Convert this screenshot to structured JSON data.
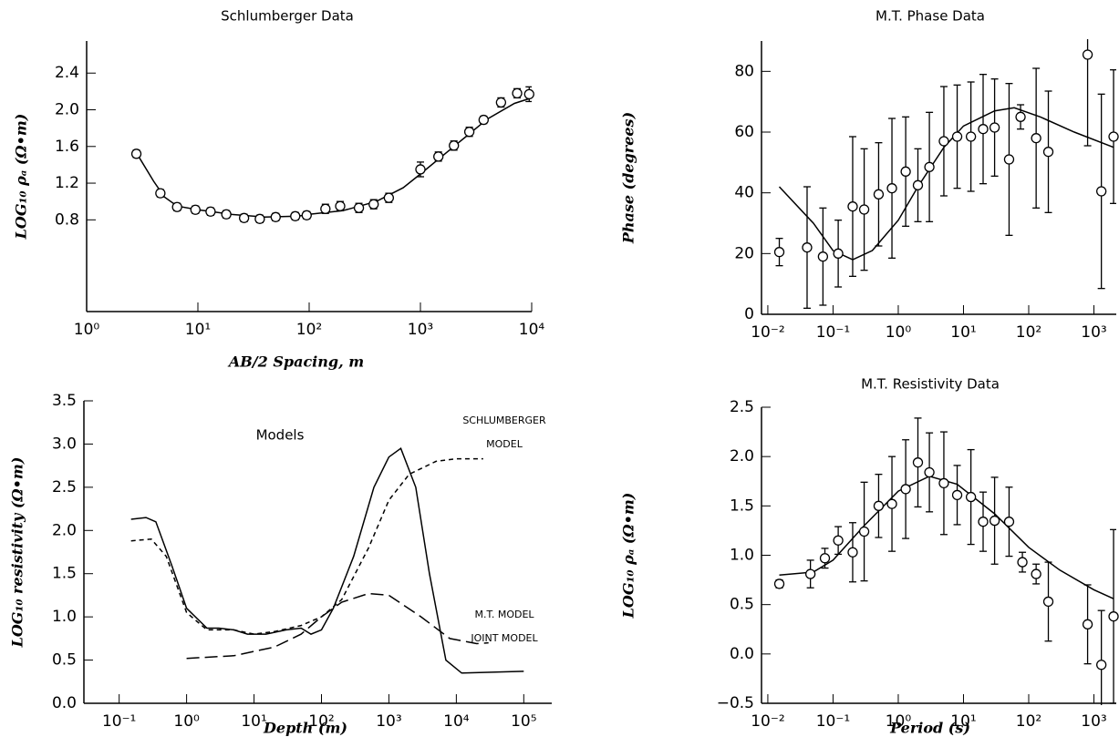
{
  "chart_data": [
    {
      "type": "errorbar",
      "title": "Schlumberger Data",
      "x_label": "AB/2 Spacing, m",
      "y_label": "LOG₁₀ ρₐ (Ω•m)",
      "xlog": true,
      "color": "#000000",
      "xlim": [
        1,
        10000
      ],
      "ylim": [
        -0.2,
        2.75
      ],
      "xticks": [
        {
          "value": 1,
          "label": "10⁰"
        },
        {
          "value": 10,
          "label": "10¹"
        },
        {
          "value": 100,
          "label": "10²"
        },
        {
          "value": 1000,
          "label": "10³"
        },
        {
          "value": 10000,
          "label": "10⁴"
        }
      ],
      "yticks": [
        0.8,
        1.2,
        1.6,
        {
          "value": 2,
          "label": "2.0"
        },
        2.4
      ],
      "points": {
        "x": [
          2.8,
          4.6,
          6.5,
          9.5,
          13,
          18,
          26,
          36,
          50,
          75,
          95,
          140,
          190,
          280,
          380,
          520,
          1000,
          1450,
          2000,
          2750,
          3700,
          5300,
          7400,
          9500
        ],
        "values": [
          1.52,
          1.09,
          0.94,
          0.91,
          0.89,
          0.86,
          0.82,
          0.81,
          0.83,
          0.84,
          0.85,
          0.92,
          0.95,
          0.93,
          0.97,
          1.04,
          1.35,
          1.49,
          1.61,
          1.76,
          1.89,
          2.08,
          2.18,
          2.17
        ],
        "errors": [
          0.04,
          0.04,
          0.04,
          0.04,
          0.04,
          0.04,
          0.04,
          0.04,
          0.04,
          0.04,
          0.04,
          0.05,
          0.05,
          0.05,
          0.05,
          0.05,
          0.08,
          0.05,
          0.05,
          0.05,
          0.04,
          0.05,
          0.05,
          0.08
        ]
      },
      "curve": {
        "x": [
          2.8,
          4,
          5,
          6.5,
          10,
          20,
          40,
          80,
          100,
          200,
          400,
          700,
          1000,
          2000,
          4000,
          7000,
          10000
        ],
        "values": [
          1.53,
          1.22,
          1.05,
          0.95,
          0.91,
          0.86,
          0.83,
          0.84,
          0.86,
          0.9,
          1.0,
          1.15,
          1.3,
          1.6,
          1.9,
          2.07,
          2.13
        ]
      }
    },
    {
      "type": "errorbar",
      "title": "M.T. Phase Data",
      "y_label": "Phase (degrees)",
      "xlog": true,
      "color": "#000000",
      "xlim": [
        0.008,
        2200
      ],
      "ylim": [
        0,
        90
      ],
      "xticks": [
        {
          "value": 0.01,
          "label": "10⁻²"
        },
        {
          "value": 0.1,
          "label": "10⁻¹"
        },
        {
          "value": 1,
          "label": "10⁰"
        },
        {
          "value": 10,
          "label": "10¹"
        },
        {
          "value": 100,
          "label": "10²"
        },
        {
          "value": 1000,
          "label": "10³"
        }
      ],
      "yticks": [
        0,
        20,
        40,
        60,
        80
      ],
      "points": {
        "x": [
          0.015,
          0.04,
          0.07,
          0.12,
          0.2,
          0.3,
          0.5,
          0.8,
          1.3,
          2,
          3,
          5,
          8,
          13,
          20,
          30,
          50,
          75,
          130,
          200,
          800,
          1300,
          2000
        ],
        "values": [
          20.5,
          22,
          19,
          20,
          35.5,
          34.5,
          39.5,
          41.5,
          47,
          42.5,
          48.5,
          57,
          58.5,
          58.5,
          61,
          61.5,
          51,
          65,
          58,
          53.5,
          85.5,
          40.5,
          58.5
        ],
        "errors": [
          4.5,
          20,
          16,
          11,
          23,
          20,
          17,
          23,
          18,
          12,
          18,
          18,
          17,
          18,
          18,
          16,
          25,
          4,
          23,
          20,
          30,
          32,
          22
        ]
      },
      "curve": {
        "x": [
          0.015,
          0.05,
          0.1,
          0.2,
          0.4,
          1,
          2,
          5,
          10,
          30,
          60,
          150,
          500,
          2000
        ],
        "values": [
          42,
          30,
          21,
          18,
          21,
          31,
          42,
          55,
          62,
          67,
          68,
          65,
          60,
          55
        ]
      }
    },
    {
      "type": "line",
      "title": "Models",
      "x_label": "Depth (m)",
      "y_label": "LOG₁₀ resistivity (Ω•m)",
      "xlog": true,
      "xlim": [
        0.03,
        260000
      ],
      "ylim": [
        0,
        3.5
      ],
      "xticks": [
        {
          "value": 0.1,
          "label": "10⁻¹"
        },
        {
          "value": 1,
          "label": "10⁰"
        },
        {
          "value": 10,
          "label": "10¹"
        },
        {
          "value": 100,
          "label": "10²"
        },
        {
          "value": 1000,
          "label": "10³"
        },
        {
          "value": 10000,
          "label": "10⁴"
        },
        {
          "value": 100000,
          "label": "10⁵"
        }
      ],
      "yticks": [
        {
          "value": 0,
          "label": "0.0"
        },
        0.5,
        {
          "value": 1,
          "label": "1.0"
        },
        1.5,
        {
          "value": 2,
          "label": "2.0"
        },
        2.5,
        {
          "value": 3,
          "label": "3.0"
        },
        3.5
      ],
      "series": [
        {
          "name": "SCHLUMBERGER MODEL",
          "color": "#000000",
          "style": "dashed",
          "x": [
            0.15,
            0.3,
            0.5,
            1,
            2,
            5,
            10,
            20,
            50,
            100,
            200,
            500,
            1000,
            2000,
            5000,
            10000,
            25000
          ],
          "values": [
            1.88,
            1.9,
            1.7,
            1.05,
            0.85,
            0.85,
            0.8,
            0.83,
            0.9,
            1.0,
            1.2,
            1.8,
            2.35,
            2.65,
            2.8,
            2.83,
            2.83
          ]
        },
        {
          "name": "M.T. MODEL",
          "color": "#000000",
          "style": "long-dashed",
          "x": [
            1,
            5,
            20,
            50,
            100,
            200,
            500,
            1000,
            3000,
            8000,
            20000,
            30000
          ],
          "values": [
            0.52,
            0.55,
            0.65,
            0.8,
            1.0,
            1.17,
            1.27,
            1.25,
            1.0,
            0.75,
            0.69,
            0.7
          ]
        },
        {
          "name": "JOINT MODEL",
          "color": "#000000",
          "style": "solid",
          "x": [
            0.15,
            0.25,
            0.35,
            0.6,
            1,
            2,
            3,
            5,
            8,
            15,
            30,
            50,
            70,
            100,
            150,
            300,
            600,
            1000,
            1500,
            2500,
            4000,
            7000,
            12000,
            100000
          ],
          "values": [
            2.13,
            2.15,
            2.1,
            1.6,
            1.1,
            0.87,
            0.87,
            0.85,
            0.8,
            0.8,
            0.85,
            0.87,
            0.8,
            0.85,
            1.1,
            1.7,
            2.5,
            2.85,
            2.95,
            2.5,
            1.5,
            0.5,
            0.35,
            0.37
          ]
        }
      ]
    },
    {
      "type": "errorbar",
      "title": "M.T. Resistivity Data",
      "x_label": "Period (s)",
      "y_label": "LOG₁₀ ρₐ (Ω•m)",
      "xlog": true,
      "color": "#000000",
      "xlim": [
        0.008,
        2200
      ],
      "ylim": [
        -0.5,
        2.5
      ],
      "xticks": [
        {
          "value": 0.01,
          "label": "10⁻²"
        },
        {
          "value": 0.1,
          "label": "10⁻¹"
        },
        {
          "value": 1,
          "label": "10⁰"
        },
        {
          "value": 10,
          "label": "10¹"
        },
        {
          "value": 100,
          "label": "10²"
        },
        {
          "value": 1000,
          "label": "10³"
        }
      ],
      "yticks": [
        {
          "value": -0.5,
          "label": "−0.5"
        },
        {
          "value": 0,
          "label": "0.0"
        },
        0.5,
        {
          "value": 1,
          "label": "1.0"
        },
        1.5,
        {
          "value": 2,
          "label": "2.0"
        },
        2.5
      ],
      "points": {
        "x": [
          0.015,
          0.045,
          0.075,
          0.12,
          0.2,
          0.3,
          0.5,
          0.8,
          1.3,
          2,
          3,
          5,
          8,
          13,
          20,
          30,
          50,
          80,
          130,
          200,
          800,
          1300,
          2000
        ],
        "values": [
          0.71,
          0.81,
          0.97,
          1.15,
          1.03,
          1.24,
          1.5,
          1.52,
          1.67,
          1.94,
          1.84,
          1.73,
          1.61,
          1.59,
          1.34,
          1.35,
          1.34,
          0.93,
          0.81,
          0.53,
          0.3,
          -0.11,
          0.38
        ],
        "errors": [
          0.04,
          0.14,
          0.1,
          0.14,
          0.3,
          0.5,
          0.32,
          0.48,
          0.5,
          0.45,
          0.4,
          0.52,
          0.3,
          0.48,
          0.3,
          0.44,
          0.35,
          0.1,
          0.1,
          0.4,
          0.4,
          0.55,
          0.88
        ]
      },
      "curve": {
        "x": [
          0.015,
          0.05,
          0.1,
          0.3,
          1,
          3,
          8,
          30,
          100,
          300,
          1000,
          2000
        ],
        "values": [
          0.8,
          0.83,
          0.95,
          1.3,
          1.65,
          1.8,
          1.72,
          1.42,
          1.08,
          0.85,
          0.65,
          0.56
        ]
      }
    }
  ]
}
